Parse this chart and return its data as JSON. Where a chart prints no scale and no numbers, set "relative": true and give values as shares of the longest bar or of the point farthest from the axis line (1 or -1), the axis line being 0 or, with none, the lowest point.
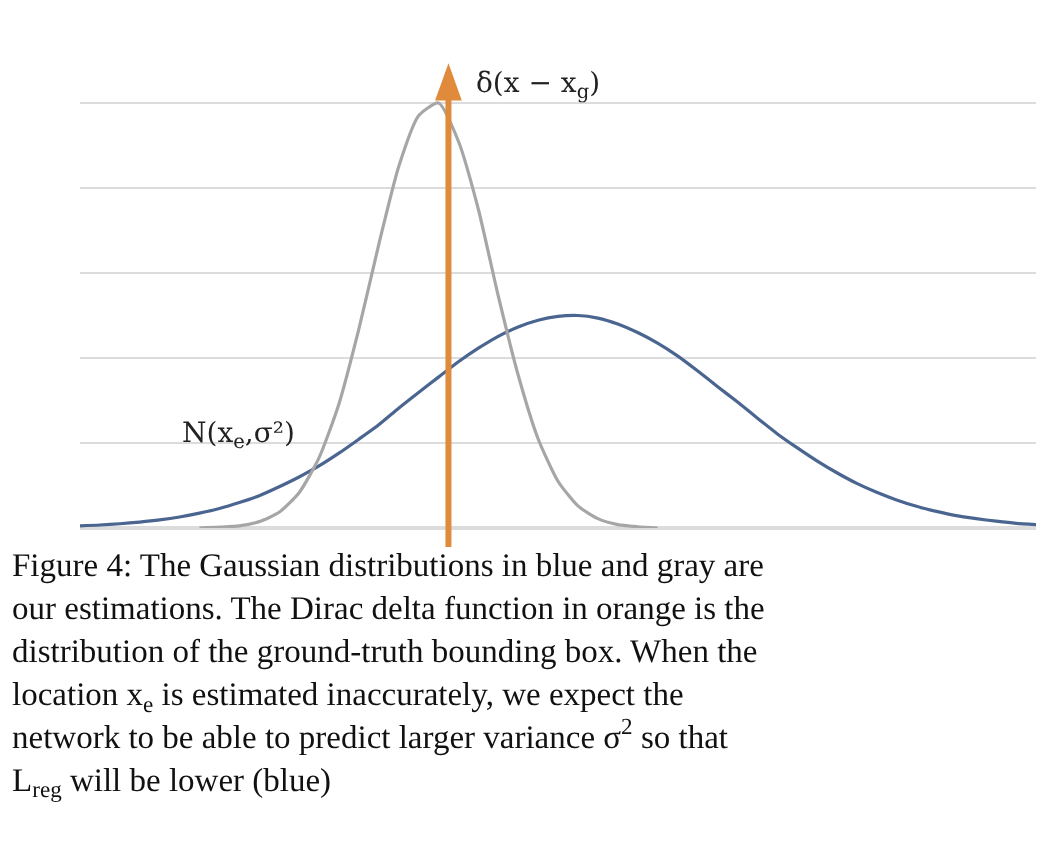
{
  "chart_data": {
    "type": "line",
    "relative": true,
    "grid": "y",
    "legend": false,
    "tick_labels": false,
    "categories": [
      null,
      null,
      null,
      null,
      null,
      null,
      null,
      null,
      null,
      null,
      null,
      null,
      null,
      null,
      null,
      null,
      null,
      null,
      null,
      null,
      null,
      null,
      null,
      null,
      null,
      null,
      null,
      null,
      null,
      null,
      null,
      null,
      null,
      null,
      null,
      null,
      null,
      null,
      null,
      null,
      null,
      null,
      null,
      null,
      null,
      null,
      null,
      null,
      null
    ],
    "series": [
      {
        "name": "N(x$_{e}$,σ²)",
        "color": "#4a6590",
        "values": [
          0.005,
          0.007,
          0.01,
          0.014,
          0.019,
          0.026,
          0.035,
          0.046,
          0.06,
          0.076,
          0.097,
          0.12,
          0.146,
          0.176,
          0.209,
          0.243,
          0.282,
          0.319,
          0.355,
          0.391,
          0.423,
          0.451,
          0.473,
          0.489,
          0.498,
          0.5,
          0.494,
          0.48,
          0.46,
          0.435,
          0.405,
          0.37,
          0.333,
          0.297,
          0.259,
          0.222,
          0.189,
          0.158,
          0.13,
          0.105,
          0.084,
          0.066,
          0.051,
          0.039,
          0.029,
          0.022,
          0.016,
          0.011,
          0.008
        ]
      },
      {
        "color": "#a6a6a6",
        "values": [
          null,
          null,
          null,
          null,
          null,
          null,
          0,
          0.002,
          0.005,
          0.015,
          0.037,
          0.083,
          0.165,
          0.292,
          0.468,
          0.667,
          0.85,
          0.97,
          1,
          0.91,
          0.75,
          0.546,
          0.36,
          0.21,
          0.11,
          0.052,
          0.022,
          0.008,
          0.003,
          0,
          null,
          null,
          null,
          null,
          null,
          null,
          null,
          null,
          null,
          null,
          null,
          null,
          null,
          null,
          null,
          null,
          null,
          null,
          null
        ]
      }
    ],
    "annotations": [
      "δ(x − x$_{g}$)",
      "Figure 4: The Gaussian distributions in blue and gray are our estimations. The Dirac delta function in orange is the distribution of the ground-truth bounding box. When the location x$_{e}$ is estimated inaccurately, we expect the network to be able to predict larger variance σ$^{2}$ so that L$_{reg}$ will be lower (blue)"
    ]
  }
}
